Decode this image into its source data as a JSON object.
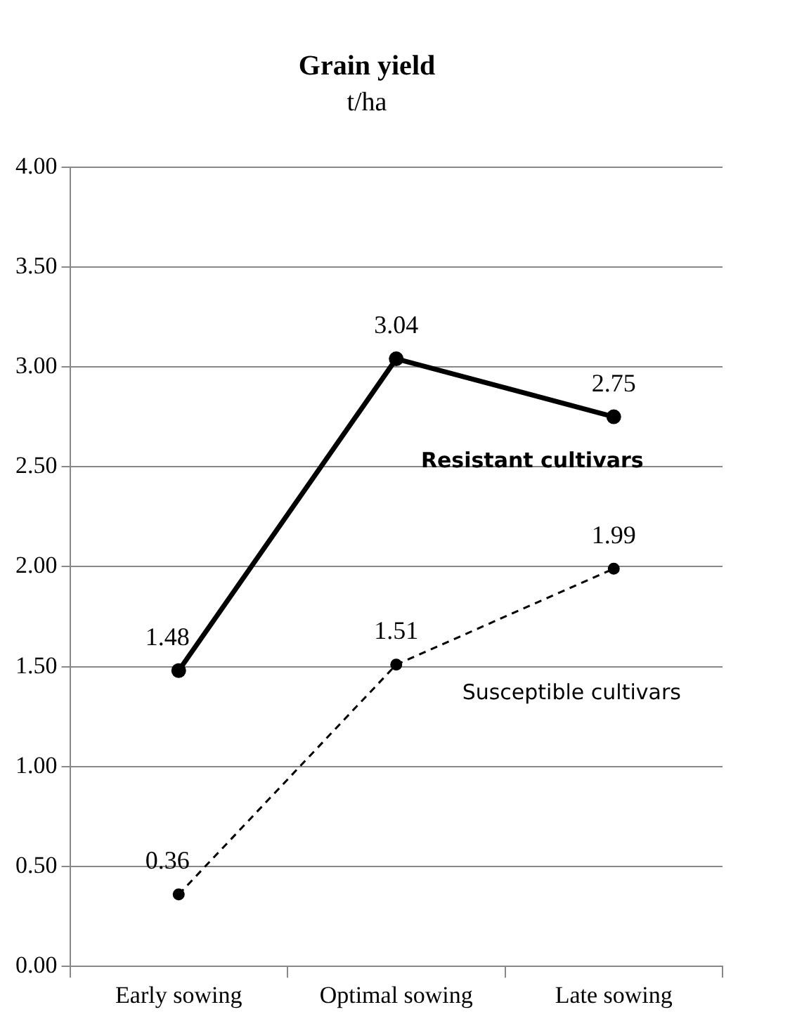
{
  "chart_data": {
    "type": "line",
    "title": "Grain yield",
    "subtitle": "t/ha",
    "categories": [
      "Early sowing",
      "Optimal sowing",
      "Late sowing"
    ],
    "series": [
      {
        "name": "Resistant cultivars",
        "color": "#000000",
        "values": [
          1.48,
          3.04,
          2.75
        ],
        "line_style": "solid"
      },
      {
        "name": "Susceptible cultivars",
        "color": "#000000",
        "values": [
          0.36,
          1.51,
          1.99
        ],
        "line_style": "dashed"
      }
    ],
    "ylim": [
      0,
      4
    ],
    "yticks": [
      {
        "value": 0,
        "label": "0.00"
      },
      {
        "value": 0.5,
        "label": "0.50"
      },
      {
        "value": 1,
        "label": "1.00"
      },
      {
        "value": 1.5,
        "label": "1.50"
      },
      {
        "value": 2,
        "label": "2.00"
      },
      {
        "value": 2.5,
        "label": "2.50"
      },
      {
        "value": 3,
        "label": "3.00"
      },
      {
        "value": 3.5,
        "label": "3.50"
      },
      {
        "value": 4,
        "label": "4.00"
      }
    ],
    "grid": "y",
    "legend": false,
    "marker": "circle",
    "data_labels": true
  }
}
